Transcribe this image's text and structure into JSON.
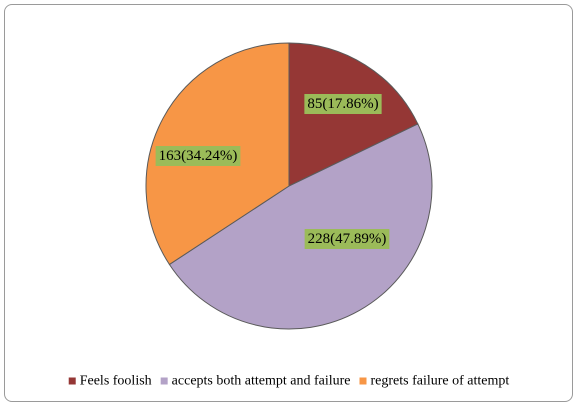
{
  "chart_data": {
    "type": "pie",
    "slices": [
      {
        "label": "Feels foolish",
        "value": 85,
        "percent": "17.86%",
        "data_label": "85(17.86%)",
        "color": "#953735"
      },
      {
        "label": "accepts both attempt and failure",
        "value": 228,
        "percent": "47.89%",
        "data_label": "228(47.89%)",
        "color": "#b3a2c7"
      },
      {
        "label": "regrets failure of attempt",
        "value": 163,
        "percent": "34.24%",
        "data_label": "163(34.24%)",
        "color": "#f79646"
      }
    ],
    "legend_position": "bottom",
    "data_label_background": "#9bbb59"
  }
}
